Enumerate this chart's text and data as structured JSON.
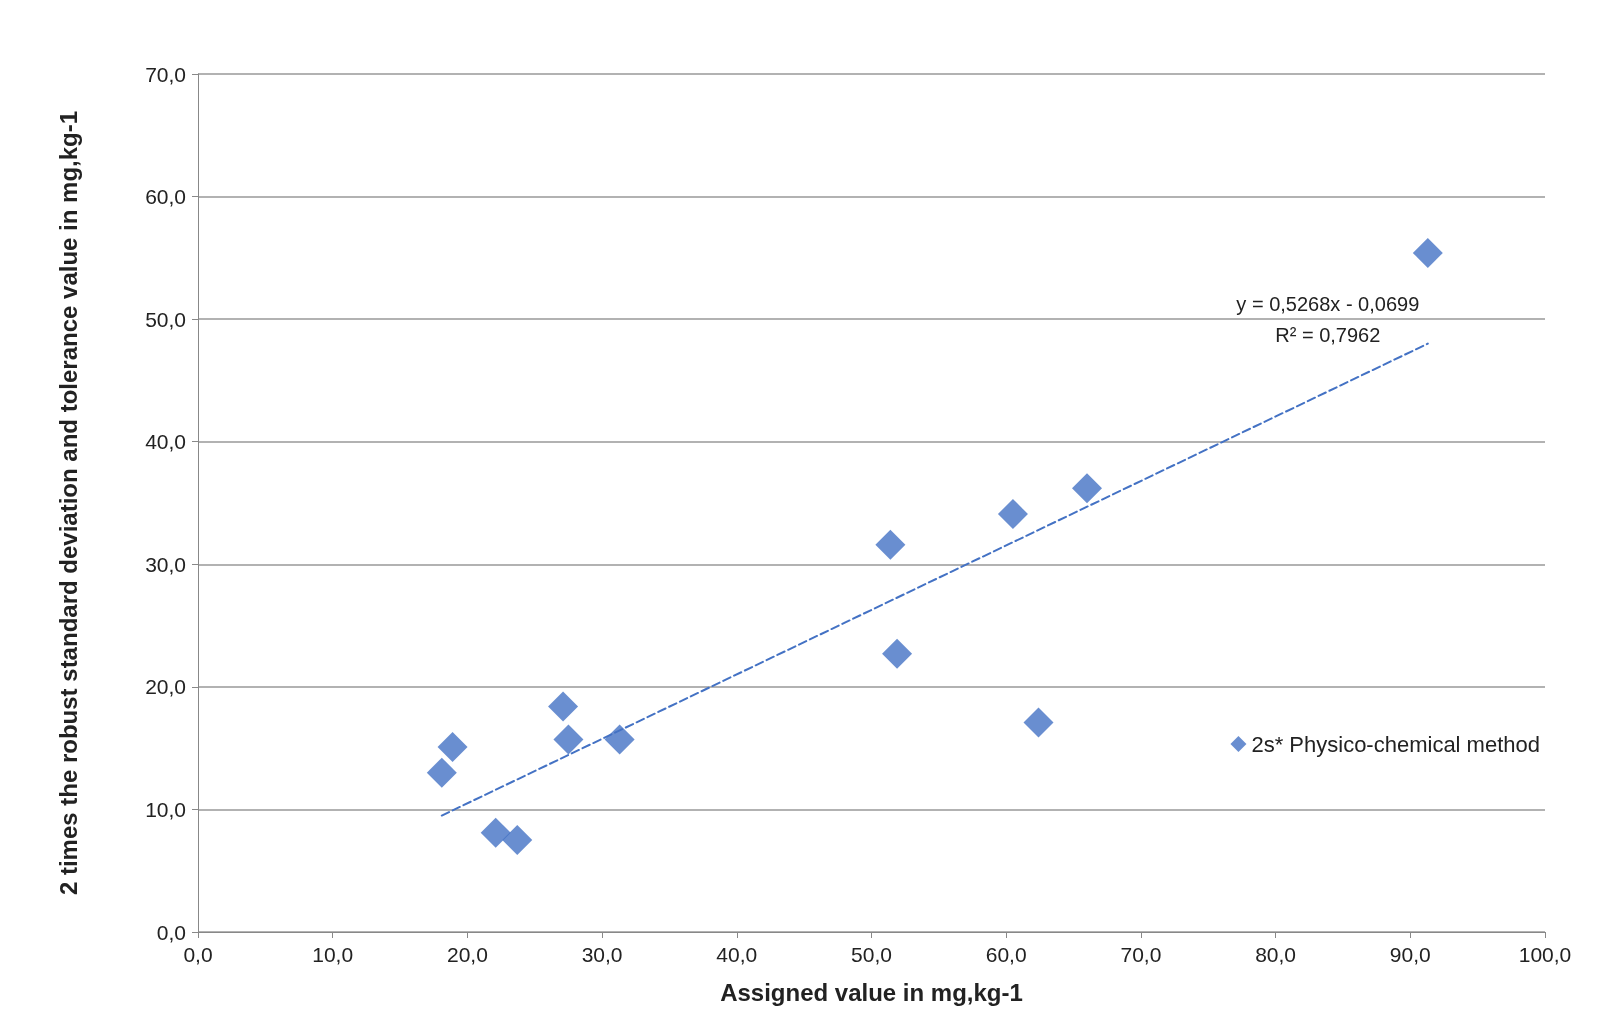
{
  "chart_data": {
    "type": "scatter",
    "xlabel": "Assigned value in mg,kg-1",
    "ylabel": "2 times the robust standard deviation and tolerance value in mg,kg-1",
    "x": [
      18.1,
      18.9,
      22.1,
      23.7,
      27.1,
      27.5,
      31.3,
      51.4,
      51.9,
      60.5,
      62.4,
      66.0,
      91.3
    ],
    "series": [
      {
        "name": "2s* Physico-chemical method",
        "color": "#4472c4",
        "marker": "diamond",
        "values": [
          13.0,
          15.1,
          8.1,
          7.5,
          18.4,
          15.7,
          15.7,
          31.6,
          22.7,
          34.1,
          17.1,
          36.2,
          55.4
        ]
      },
      {
        "type": "line",
        "color": "#4472c4",
        "line_style": "dashed",
        "marker": "none",
        "x": [
          18.1,
          91.3
        ],
        "values": [
          9.5,
          48.0
        ]
      }
    ],
    "xlim": [
      0,
      100
    ],
    "ylim": [
      0,
      70
    ],
    "xticks": [
      {
        "value": 0,
        "label": "0,0"
      },
      {
        "value": 10,
        "label": "10,0"
      },
      {
        "value": 20,
        "label": "20,0"
      },
      {
        "value": 30,
        "label": "30,0"
      },
      {
        "value": 40,
        "label": "40,0"
      },
      {
        "value": 50,
        "label": "50,0"
      },
      {
        "value": 60,
        "label": "60,0"
      },
      {
        "value": 70,
        "label": "70,0"
      },
      {
        "value": 80,
        "label": "80,0"
      },
      {
        "value": 90,
        "label": "90,0"
      },
      {
        "value": 100,
        "label": "100,0"
      }
    ],
    "yticks": [
      {
        "value": 0,
        "label": "0,0"
      },
      {
        "value": 10,
        "label": "10,0"
      },
      {
        "value": 20,
        "label": "20,0"
      },
      {
        "value": 30,
        "label": "30,0"
      },
      {
        "value": 40,
        "label": "40,0"
      },
      {
        "value": 50,
        "label": "50,0"
      },
      {
        "value": 60,
        "label": "60,0"
      },
      {
        "value": 70,
        "label": "70,0"
      }
    ],
    "annotations": [
      "y = 0,5268x - 0,0699",
      "R² = 0,7962"
    ],
    "grid": "y",
    "legend": "right"
  }
}
